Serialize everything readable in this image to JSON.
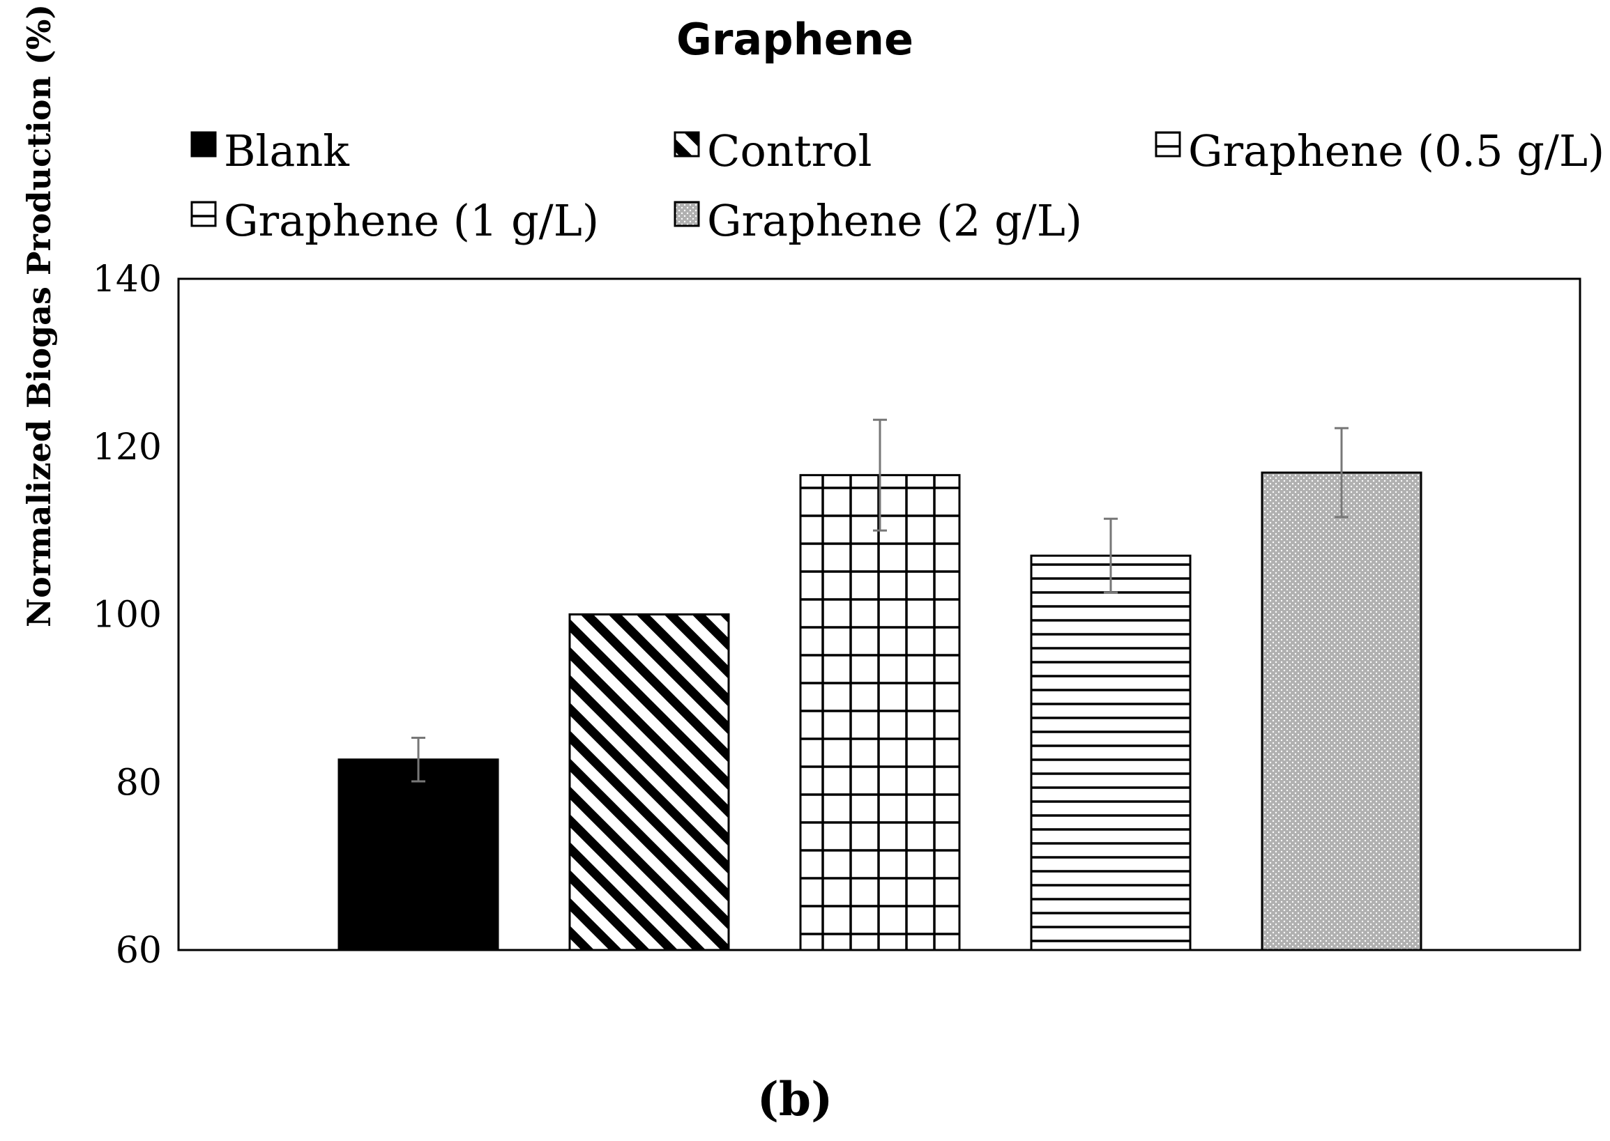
{
  "chart_data": {
    "type": "bar",
    "title": "Graphene",
    "panel_label": "(b)",
    "xlabel": "",
    "ylabel": "Normalized Biogas Production (%)",
    "ylim": [
      60,
      140
    ],
    "yticks": [
      60,
      80,
      100,
      120,
      140
    ],
    "grid": false,
    "legend_position": "top",
    "categories": [
      "Blank",
      "Control",
      "Graphene (0.5 g/L)",
      "Graphene (1 g/L)",
      "Graphene (2 g/L)"
    ],
    "values": [
      82.7,
      100.0,
      116.6,
      107.0,
      116.9
    ],
    "error": [
      2.6,
      0.0,
      6.6,
      4.4,
      5.3
    ],
    "patterns": [
      "solid-black",
      "diagonal-stripes",
      "grid",
      "horizontal-lines",
      "dotted"
    ],
    "colors": {
      "bar_fill": "#000000",
      "bar_outline": "#000000",
      "error_bar": "#777777",
      "background": "#ffffff"
    }
  }
}
